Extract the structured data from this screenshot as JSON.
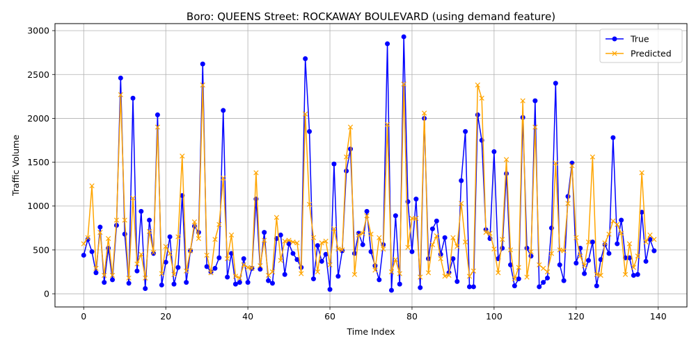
{
  "chart_data": {
    "type": "line",
    "title": "Boro: QUEENS Street: ROCKAWAY BOULEVARD (using demand feature)",
    "xlabel": "Time Index",
    "ylabel": "Traffic Volume",
    "xlim": [
      -7,
      147
    ],
    "ylim": [
      -150,
      3080
    ],
    "xticks": [
      0,
      20,
      40,
      60,
      80,
      100,
      120,
      140
    ],
    "yticks": [
      0,
      500,
      1000,
      1500,
      2000,
      2500,
      3000
    ],
    "grid": true,
    "legend_position": "top-right",
    "series": [
      {
        "name": "True",
        "color": "#0000ff",
        "marker": "circle",
        "values": [
          440,
          620,
          480,
          240,
          760,
          130,
          520,
          160,
          780,
          2460,
          680,
          120,
          2230,
          260,
          940,
          60,
          840,
          460,
          2040,
          100,
          360,
          650,
          110,
          300,
          1120,
          130,
          490,
          770,
          700,
          2620,
          310,
          250,
          290,
          410,
          2090,
          190,
          460,
          110,
          130,
          400,
          130,
          290,
          1080,
          280,
          700,
          150,
          120,
          630,
          670,
          220,
          570,
          460,
          390,
          300,
          2680,
          1850,
          170,
          550,
          370,
          450,
          50,
          1480,
          200,
          490,
          1400,
          1650,
          460,
          690,
          560,
          940,
          480,
          320,
          160,
          560,
          2850,
          40,
          890,
          110,
          2930,
          1050,
          480,
          1080,
          70,
          2000,
          400,
          740,
          830,
          450,
          640,
          240,
          400,
          140,
          1290,
          1850,
          80,
          80,
          2040,
          1750,
          730,
          630,
          1620,
          400,
          520,
          1370,
          330,
          90,
          170,
          2010,
          520,
          430,
          2200,
          80,
          130,
          180,
          750,
          2400,
          330,
          150,
          1110,
          1490,
          350,
          520,
          230,
          380,
          590,
          90,
          390,
          560,
          460,
          1780,
          570,
          840,
          410,
          410,
          210,
          220,
          930,
          370,
          620,
          490
        ]
      },
      {
        "name": "Predicted",
        "color": "#ffa500",
        "marker": "x",
        "values": [
          570,
          640,
          1230,
          290,
          700,
          210,
          630,
          210,
          840,
          2270,
          840,
          180,
          1090,
          340,
          450,
          180,
          710,
          470,
          1900,
          230,
          540,
          460,
          220,
          650,
          1570,
          260,
          490,
          820,
          630,
          2380,
          440,
          240,
          620,
          790,
          1320,
          400,
          670,
          200,
          180,
          330,
          300,
          290,
          1380,
          320,
          610,
          210,
          250,
          870,
          380,
          600,
          610,
          590,
          580,
          230,
          2050,
          1020,
          640,
          250,
          580,
          600,
          330,
          740,
          510,
          500,
          1560,
          1900,
          220,
          670,
          690,
          890,
          680,
          270,
          640,
          510,
          1930,
          250,
          390,
          230,
          2390,
          530,
          860,
          860,
          190,
          2060,
          240,
          560,
          660,
          400,
          200,
          210,
          640,
          540,
          1030,
          590,
          200,
          260,
          2380,
          2230,
          700,
          690,
          510,
          240,
          620,
          1530,
          500,
          170,
          300,
          2200,
          190,
          480,
          1900,
          330,
          290,
          250,
          460,
          1490,
          500,
          490,
          1030,
          1460,
          640,
          430,
          320,
          590,
          1560,
          220,
          210,
          580,
          680,
          830,
          790,
          690,
          220,
          570,
          300,
          430,
          1380,
          590,
          670,
          620
        ]
      }
    ]
  }
}
